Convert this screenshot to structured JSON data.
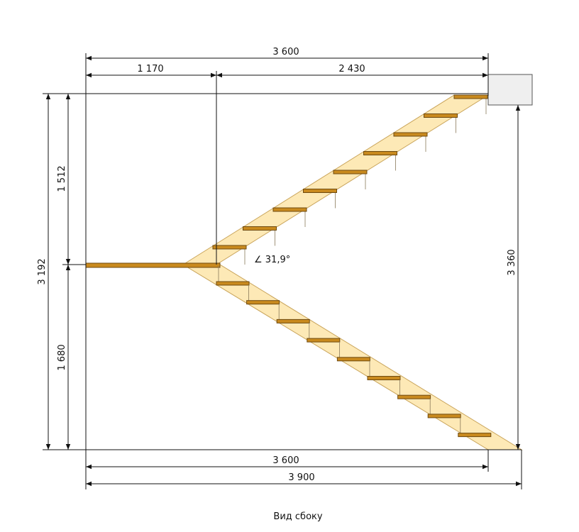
{
  "dimensions": {
    "top_total": "3 600",
    "top_left": "1 170",
    "top_right": "2 430",
    "left_total": "3 192",
    "left_upper": "1 512",
    "left_lower": "1 680",
    "right_height": "3 360",
    "bottom_inner": "3 600",
    "bottom_total": "3 900"
  },
  "angle_label": "∠ 31,9°",
  "caption": "Вид сбоку"
}
